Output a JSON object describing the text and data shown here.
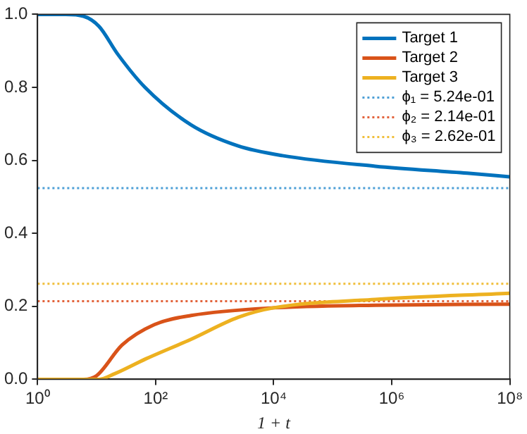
{
  "chart_data": {
    "type": "line",
    "xlabel": "1 + t",
    "log": "x",
    "xlim": [
      1,
      100000000
    ],
    "ylim": [
      0,
      1
    ],
    "xticks": [
      {
        "value": 1,
        "label": "10⁰"
      },
      {
        "value": 100,
        "label": "10²"
      },
      {
        "value": 10000,
        "label": "10⁴"
      },
      {
        "value": 1000000,
        "label": "10⁶"
      },
      {
        "value": 100000000,
        "label": "10⁸"
      }
    ],
    "yticks": [
      {
        "value": 0,
        "label": "0.0"
      },
      0.2,
      0.4,
      0.6,
      0.8,
      {
        "value": 1,
        "label": "1.0"
      }
    ],
    "grid": false,
    "legend": "top right",
    "line_style": "solid",
    "marker": "none",
    "series": [
      {
        "name": "Target 1",
        "color": "#0072bd",
        "x": [
          1,
          3,
          6,
          11,
          23,
          66,
          400,
          2450,
          14000,
          525000,
          19000000,
          100000000
        ],
        "values": [
          1,
          1,
          0.995,
          0.967,
          0.89,
          0.8,
          0.697,
          0.64,
          0.613,
          0.584,
          0.565,
          0.555
        ]
      },
      {
        "name": "Target 2",
        "color": "#d95319",
        "x": [
          1,
          3,
          6,
          10,
          27,
          95,
          400,
          10000,
          525000,
          100000000
        ],
        "values": [
          0,
          0,
          0,
          0.01,
          0.094,
          0.15,
          0.175,
          0.196,
          0.203,
          0.206
        ]
      },
      {
        "name": "Target 3",
        "color": "#edb120",
        "x": [
          1,
          3,
          6,
          11,
          20,
          68,
          400,
          2500,
          10000,
          525000,
          100000000
        ],
        "values": [
          0,
          0,
          0,
          0,
          0.015,
          0.056,
          0.11,
          0.17,
          0.196,
          0.219,
          0.236
        ]
      },
      {
        "name": "ϕ₁ = 5.24e-01",
        "color": "#4d9fd6",
        "line_style": "dotted",
        "x": [
          1,
          100000000
        ],
        "values": [
          0.524,
          0.524
        ]
      },
      {
        "name": "ϕ₂ = 2.14e-01",
        "color": "#e2623a",
        "line_style": "dotted",
        "x": [
          1,
          100000000
        ],
        "values": [
          0.214,
          0.214
        ]
      },
      {
        "name": "ϕ₃ = 2.62e-01",
        "color": "#f0be3a",
        "line_style": "dotted",
        "x": [
          1,
          100000000
        ],
        "values": [
          0.262,
          0.262
        ]
      }
    ]
  }
}
